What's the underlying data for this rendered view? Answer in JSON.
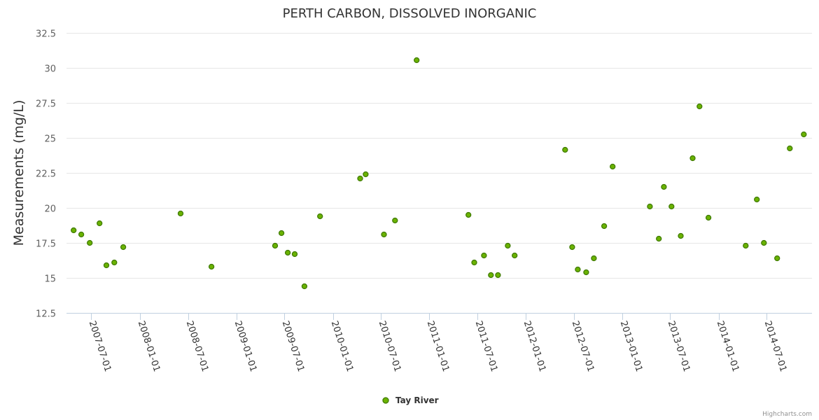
{
  "chart_data": {
    "type": "scatter",
    "title": "PERTH CARBON, DISSOLVED INORGANIC",
    "xlabel": "",
    "ylabel": "Measurements (mg/L)",
    "ylim": [
      12.5,
      32.5
    ],
    "yticks": [
      "12.5",
      "15",
      "17.5",
      "20",
      "22.5",
      "25",
      "27.5",
      "30",
      "32.5"
    ],
    "xlim": [
      "2007-03-29",
      "2014-12-20"
    ],
    "xticks": [
      "2007-07-01",
      "2008-01-01",
      "2008-07-01",
      "2009-01-01",
      "2009-07-01",
      "2010-01-01",
      "2010-07-01",
      "2011-01-01",
      "2011-07-01",
      "2012-01-01",
      "2012-07-01",
      "2013-01-01",
      "2013-07-01",
      "2014-01-01",
      "2014-07-01"
    ],
    "grid": true,
    "legend_position": "bottom-center",
    "series": [
      {
        "name": "Tay River",
        "color": "#6bb300",
        "points": [
          [
            "2007-04-25",
            18.4
          ],
          [
            "2007-05-24",
            18.1
          ],
          [
            "2007-06-25",
            17.5
          ],
          [
            "2007-08-01",
            18.9
          ],
          [
            "2007-08-27",
            15.9
          ],
          [
            "2007-09-26",
            16.1
          ],
          [
            "2007-10-30",
            17.2
          ],
          [
            "2008-06-03",
            19.6
          ],
          [
            "2008-09-28",
            15.8
          ],
          [
            "2009-05-27",
            17.3
          ],
          [
            "2009-06-20",
            18.2
          ],
          [
            "2009-07-14",
            16.8
          ],
          [
            "2009-08-09",
            16.7
          ],
          [
            "2009-09-15",
            14.4
          ],
          [
            "2009-11-13",
            19.4
          ],
          [
            "2010-04-14",
            22.1
          ],
          [
            "2010-05-05",
            22.4
          ],
          [
            "2010-07-13",
            18.1
          ],
          [
            "2010-08-24",
            19.1
          ],
          [
            "2010-11-14",
            30.55
          ],
          [
            "2011-05-29",
            19.5
          ],
          [
            "2011-06-20",
            16.1
          ],
          [
            "2011-07-27",
            16.6
          ],
          [
            "2011-08-22",
            15.2
          ],
          [
            "2011-09-18",
            15.2
          ],
          [
            "2011-10-25",
            17.3
          ],
          [
            "2011-11-20",
            16.6
          ],
          [
            "2012-05-29",
            24.15
          ],
          [
            "2012-06-25",
            17.2
          ],
          [
            "2012-07-16",
            15.6
          ],
          [
            "2012-08-17",
            15.4
          ],
          [
            "2012-09-15",
            16.4
          ],
          [
            "2012-10-24",
            18.7
          ],
          [
            "2012-11-25",
            22.95
          ],
          [
            "2013-04-15",
            20.1
          ],
          [
            "2013-05-19",
            17.8
          ],
          [
            "2013-06-07",
            21.5
          ],
          [
            "2013-07-06",
            20.1
          ],
          [
            "2013-08-10",
            18.0
          ],
          [
            "2013-09-24",
            23.55
          ],
          [
            "2013-10-20",
            27.25
          ],
          [
            "2013-11-23",
            19.3
          ],
          [
            "2014-04-13",
            17.3
          ],
          [
            "2014-05-25",
            20.6
          ],
          [
            "2014-06-21",
            17.5
          ],
          [
            "2014-08-10",
            16.4
          ],
          [
            "2014-09-27",
            24.25
          ],
          [
            "2014-11-19",
            25.25
          ]
        ]
      }
    ]
  },
  "credits": "Highcharts.com"
}
